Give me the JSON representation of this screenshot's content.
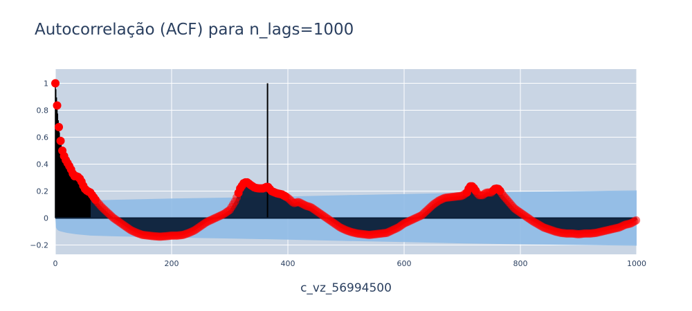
{
  "chart_data": {
    "type": "scatter",
    "title": "Autocorrelação (ACF) para n_lags=1000",
    "xlabel": "c_vz_56994500",
    "ylabel": "",
    "xlim": [
      0,
      1000
    ],
    "ylim": [
      -0.28,
      1.1
    ],
    "x_ticks": [
      0,
      200,
      400,
      600,
      800,
      1000
    ],
    "y_ticks": [
      -0.2,
      0,
      0.2,
      0.4,
      0.6,
      0.8,
      1
    ],
    "y_tick_labels": [
      "−0.2",
      "0",
      "0.2",
      "0.4",
      "0.6",
      "0.8",
      "1"
    ],
    "grid": true,
    "legend": "none",
    "series": [
      {
        "role": "acf",
        "color": "#ff0000",
        "points": [
          [
            0,
            1.0
          ],
          [
            1,
            0.955
          ],
          [
            2,
            0.895
          ],
          [
            3,
            0.835
          ],
          [
            4,
            0.775
          ],
          [
            5,
            0.725
          ],
          [
            6,
            0.675
          ],
          [
            7,
            0.635
          ],
          [
            8,
            0.6
          ],
          [
            10,
            0.545
          ],
          [
            12,
            0.5
          ],
          [
            15,
            0.46
          ],
          [
            18,
            0.43
          ],
          [
            22,
            0.4
          ],
          [
            26,
            0.37
          ],
          [
            30,
            0.33
          ],
          [
            33,
            0.31
          ],
          [
            37,
            0.31
          ],
          [
            41,
            0.3
          ],
          [
            45,
            0.27
          ],
          [
            50,
            0.22
          ],
          [
            55,
            0.2
          ],
          [
            60,
            0.19
          ],
          [
            65,
            0.16
          ],
          [
            70,
            0.13
          ],
          [
            80,
            0.08
          ],
          [
            90,
            0.04
          ],
          [
            100,
            0.0
          ],
          [
            110,
            -0.03
          ],
          [
            120,
            -0.06
          ],
          [
            130,
            -0.09
          ],
          [
            140,
            -0.11
          ],
          [
            150,
            -0.125
          ],
          [
            160,
            -0.13
          ],
          [
            170,
            -0.135
          ],
          [
            180,
            -0.138
          ],
          [
            190,
            -0.135
          ],
          [
            200,
            -0.13
          ],
          [
            210,
            -0.13
          ],
          [
            220,
            -0.125
          ],
          [
            230,
            -0.11
          ],
          [
            240,
            -0.09
          ],
          [
            250,
            -0.06
          ],
          [
            260,
            -0.03
          ],
          [
            270,
            -0.01
          ],
          [
            280,
            0.01
          ],
          [
            290,
            0.03
          ],
          [
            300,
            0.06
          ],
          [
            310,
            0.13
          ],
          [
            318,
            0.22
          ],
          [
            325,
            0.265
          ],
          [
            330,
            0.265
          ],
          [
            336,
            0.245
          ],
          [
            343,
            0.225
          ],
          [
            350,
            0.22
          ],
          [
            358,
            0.22
          ],
          [
            365,
            0.235
          ],
          [
            372,
            0.2
          ],
          [
            380,
            0.185
          ],
          [
            390,
            0.175
          ],
          [
            400,
            0.15
          ],
          [
            410,
            0.11
          ],
          [
            418,
            0.12
          ],
          [
            425,
            0.105
          ],
          [
            432,
            0.09
          ],
          [
            440,
            0.08
          ],
          [
            450,
            0.05
          ],
          [
            460,
            0.02
          ],
          [
            470,
            -0.01
          ],
          [
            480,
            -0.04
          ],
          [
            490,
            -0.07
          ],
          [
            500,
            -0.09
          ],
          [
            510,
            -0.105
          ],
          [
            520,
            -0.115
          ],
          [
            530,
            -0.12
          ],
          [
            540,
            -0.125
          ],
          [
            550,
            -0.12
          ],
          [
            560,
            -0.115
          ],
          [
            570,
            -0.11
          ],
          [
            580,
            -0.09
          ],
          [
            590,
            -0.07
          ],
          [
            600,
            -0.04
          ],
          [
            610,
            -0.02
          ],
          [
            620,
            0.0
          ],
          [
            630,
            0.02
          ],
          [
            640,
            0.06
          ],
          [
            650,
            0.1
          ],
          [
            660,
            0.13
          ],
          [
            670,
            0.15
          ],
          [
            680,
            0.155
          ],
          [
            690,
            0.16
          ],
          [
            700,
            0.165
          ],
          [
            708,
            0.19
          ],
          [
            713,
            0.235
          ],
          [
            718,
            0.235
          ],
          [
            722,
            0.21
          ],
          [
            728,
            0.17
          ],
          [
            735,
            0.17
          ],
          [
            742,
            0.19
          ],
          [
            750,
            0.19
          ],
          [
            757,
            0.22
          ],
          [
            763,
            0.215
          ],
          [
            770,
            0.17
          ],
          [
            780,
            0.12
          ],
          [
            790,
            0.07
          ],
          [
            800,
            0.04
          ],
          [
            810,
            0.01
          ],
          [
            820,
            -0.02
          ],
          [
            830,
            -0.045
          ],
          [
            840,
            -0.07
          ],
          [
            850,
            -0.085
          ],
          [
            860,
            -0.1
          ],
          [
            870,
            -0.11
          ],
          [
            880,
            -0.115
          ],
          [
            890,
            -0.115
          ],
          [
            900,
            -0.12
          ],
          [
            910,
            -0.115
          ],
          [
            920,
            -0.115
          ],
          [
            930,
            -0.11
          ],
          [
            940,
            -0.1
          ],
          [
            950,
            -0.09
          ],
          [
            960,
            -0.08
          ],
          [
            970,
            -0.07
          ],
          [
            980,
            -0.05
          ],
          [
            990,
            -0.04
          ],
          [
            1000,
            -0.015
          ]
        ]
      },
      {
        "role": "confidence-band",
        "color": "#8fbbe6",
        "upper": [
          [
            0,
            0.0
          ],
          [
            1,
            0.07
          ],
          [
            3,
            0.085
          ],
          [
            6,
            0.095
          ],
          [
            10,
            0.1
          ],
          [
            20,
            0.11
          ],
          [
            35,
            0.12
          ],
          [
            60,
            0.13
          ],
          [
            100,
            0.135
          ],
          [
            200,
            0.145
          ],
          [
            300,
            0.152
          ],
          [
            400,
            0.16
          ],
          [
            500,
            0.17
          ],
          [
            600,
            0.178
          ],
          [
            700,
            0.188
          ],
          [
            800,
            0.195
          ],
          [
            900,
            0.2
          ],
          [
            1000,
            0.205
          ]
        ],
        "lower": [
          [
            0,
            0.0
          ],
          [
            1,
            -0.07
          ],
          [
            3,
            -0.085
          ],
          [
            6,
            -0.095
          ],
          [
            10,
            -0.1
          ],
          [
            20,
            -0.11
          ],
          [
            35,
            -0.12
          ],
          [
            60,
            -0.13
          ],
          [
            100,
            -0.135
          ],
          [
            200,
            -0.145
          ],
          [
            300,
            -0.152
          ],
          [
            400,
            -0.16
          ],
          [
            500,
            -0.17
          ],
          [
            600,
            -0.178
          ],
          [
            700,
            -0.188
          ],
          [
            800,
            -0.195
          ],
          [
            900,
            -0.2
          ],
          [
            1000,
            -0.205
          ]
        ]
      },
      {
        "role": "vertical-marker",
        "color": "#000000",
        "x": 365,
        "y": [
          0,
          1
        ]
      }
    ]
  }
}
